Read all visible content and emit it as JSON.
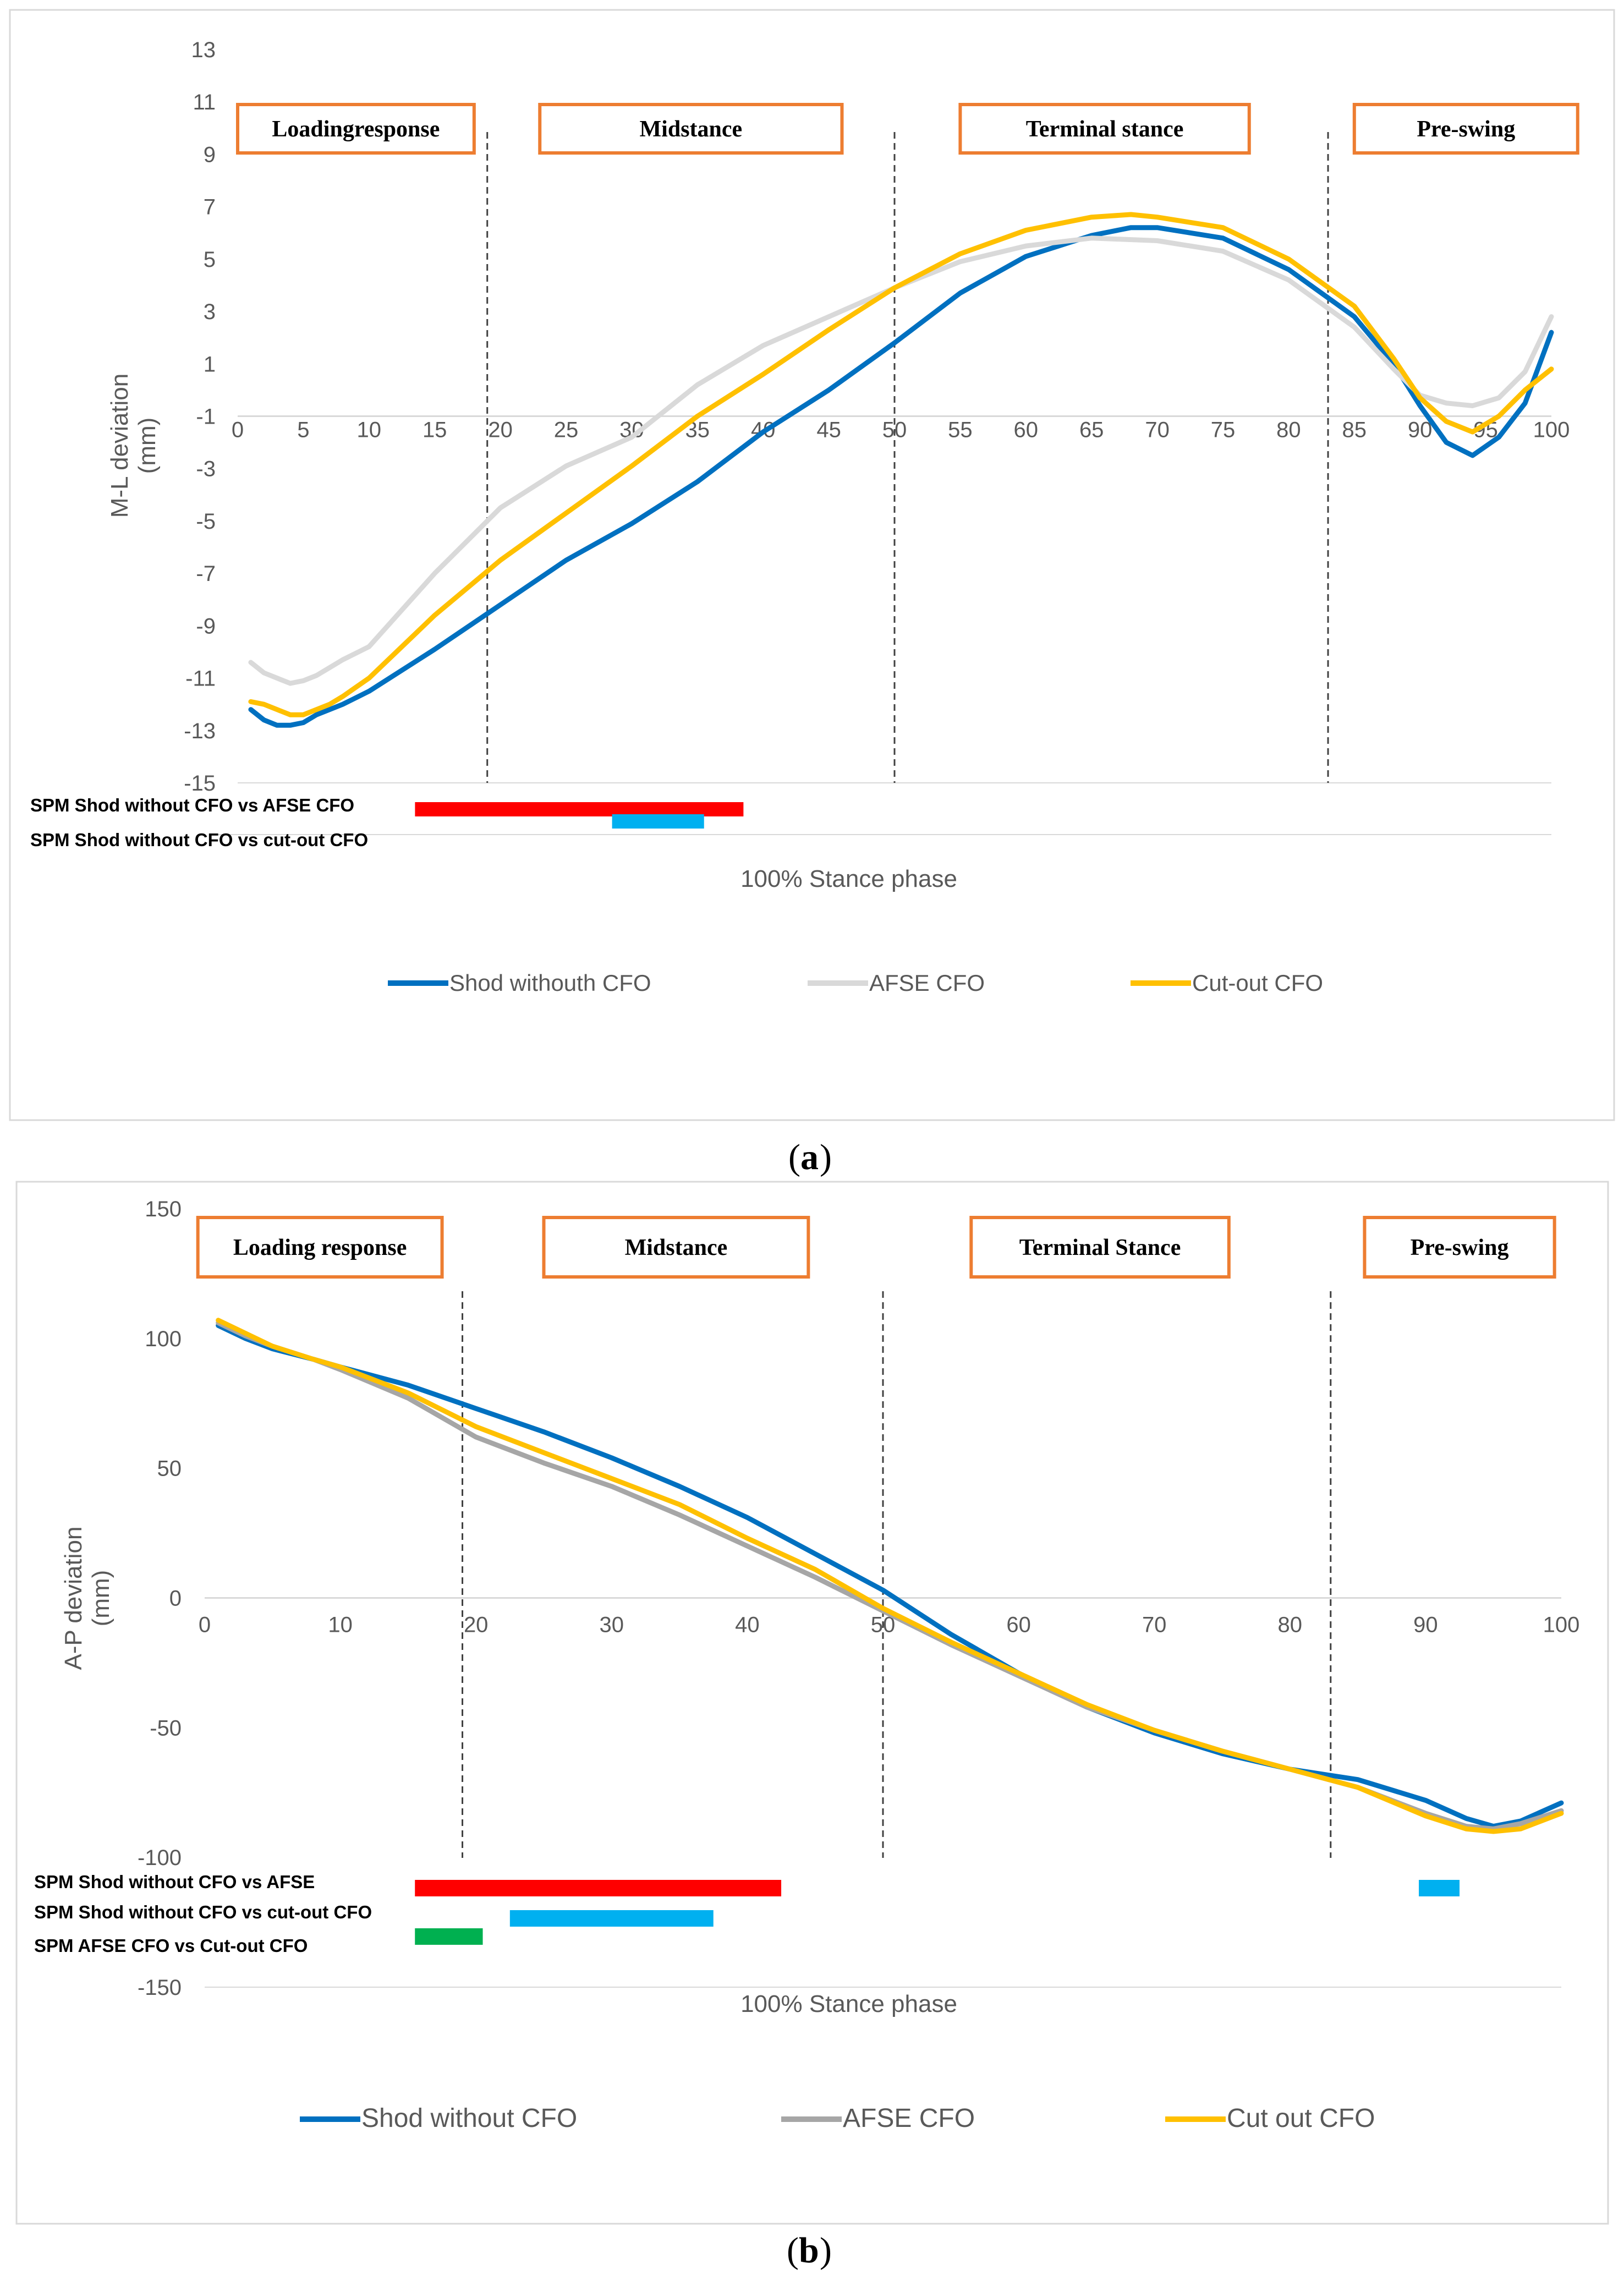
{
  "chart_data": [
    {
      "id": "a",
      "type": "line",
      "panel_label": "a",
      "xlabel": "100% Stance phase",
      "ylabel": [
        "M-L deviation",
        "(mm)"
      ],
      "xlim": [
        0,
        100
      ],
      "ylim": [
        -15,
        13
      ],
      "xticks": [
        0,
        5,
        10,
        15,
        20,
        25,
        30,
        35,
        40,
        45,
        50,
        55,
        60,
        65,
        70,
        75,
        80,
        85,
        90,
        95,
        100
      ],
      "yticks": [
        13,
        11,
        9,
        7,
        5,
        3,
        1,
        -1,
        -3,
        -5,
        -7,
        -9,
        -11,
        -13,
        -15
      ],
      "x_axis_at": -1,
      "phase_lines": [
        19,
        50,
        83
      ],
      "phases": [
        {
          "label": "Loadingresponse",
          "start": 0,
          "end": 18
        },
        {
          "label": "Midstance",
          "start": 23,
          "end": 46
        },
        {
          "label": "Terminal stance",
          "start": 55,
          "end": 77
        },
        {
          "label": "Pre-swing",
          "start": 85,
          "end": 102
        }
      ],
      "spm": [
        {
          "label": "SPM Shod without CFO vs AFSE CFO",
          "bars": [
            {
              "start": 13.5,
              "end": 38.5,
              "color": "#ff0000"
            }
          ]
        },
        {
          "label": "SPM Shod without CFO vs cut-out CFO",
          "bars": [
            {
              "start": 28.5,
              "end": 35.5,
              "color": "#00b0f0"
            }
          ]
        }
      ],
      "series": [
        {
          "name": "Shod withouth CFO",
          "color": "#0070c0",
          "x": [
            1,
            2,
            3,
            4,
            5,
            6,
            7,
            8,
            10,
            15,
            20,
            25,
            30,
            35,
            40,
            45,
            50,
            55,
            60,
            65,
            68,
            70,
            75,
            80,
            85,
            88,
            90,
            92,
            94,
            96,
            98,
            100
          ],
          "values": [
            -12.2,
            -12.6,
            -12.8,
            -12.8,
            -12.7,
            -12.4,
            -12.2,
            -12.0,
            -11.5,
            -9.9,
            -8.2,
            -6.5,
            -5.1,
            -3.5,
            -1.6,
            0.0,
            1.8,
            3.7,
            5.1,
            5.9,
            6.2,
            6.2,
            5.8,
            4.6,
            2.8,
            1.0,
            -0.6,
            -2.0,
            -2.5,
            -1.8,
            -0.5,
            2.2
          ]
        },
        {
          "name": "AFSE CFO",
          "color": "#d9d9d9",
          "x": [
            1,
            2,
            3,
            4,
            5,
            6,
            7,
            8,
            10,
            15,
            20,
            25,
            30,
            35,
            40,
            45,
            50,
            55,
            60,
            65,
            70,
            75,
            80,
            85,
            88,
            90,
            92,
            94,
            96,
            98,
            100
          ],
          "values": [
            -10.4,
            -10.8,
            -11.0,
            -11.2,
            -11.1,
            -10.9,
            -10.6,
            -10.3,
            -9.8,
            -7.0,
            -4.5,
            -2.9,
            -1.8,
            0.2,
            1.7,
            2.8,
            3.9,
            4.9,
            5.5,
            5.8,
            5.7,
            5.3,
            4.2,
            2.4,
            0.8,
            -0.2,
            -0.5,
            -0.6,
            -0.3,
            0.7,
            2.8
          ]
        },
        {
          "name": "Cut-out CFO",
          "color": "#ffc000",
          "x": [
            1,
            2,
            3,
            4,
            5,
            6,
            7,
            8,
            10,
            15,
            20,
            25,
            30,
            35,
            40,
            45,
            50,
            55,
            60,
            65,
            68,
            70,
            75,
            80,
            85,
            88,
            90,
            92,
            94,
            96,
            98,
            100
          ],
          "values": [
            -11.9,
            -12.0,
            -12.2,
            -12.4,
            -12.4,
            -12.2,
            -12.0,
            -11.7,
            -11.0,
            -8.6,
            -6.5,
            -4.7,
            -2.9,
            -1.0,
            0.6,
            2.3,
            3.9,
            5.2,
            6.1,
            6.6,
            6.7,
            6.6,
            6.2,
            5.0,
            3.2,
            1.2,
            -0.3,
            -1.2,
            -1.6,
            -1.0,
            0.0,
            0.8
          ]
        }
      ],
      "legend": [
        "Shod withouth CFO",
        "AFSE CFO",
        "Cut-out CFO"
      ]
    },
    {
      "id": "b",
      "type": "line",
      "panel_label": "b",
      "xlabel": "100% Stance phase",
      "ylabel": [
        "A-P deviation",
        "(mm)"
      ],
      "xlim": [
        0,
        100
      ],
      "ylim": [
        -150,
        150
      ],
      "xticks": [
        0,
        10,
        20,
        30,
        40,
        50,
        60,
        70,
        80,
        90,
        100
      ],
      "yticks": [
        150,
        100,
        50,
        0,
        -50,
        -100,
        -150
      ],
      "x_axis_at": 0,
      "phase_lines": [
        19,
        50,
        83
      ],
      "phases": [
        {
          "label": "Loading response",
          "start": -0.5,
          "end": 17.5
        },
        {
          "label": "Midstance",
          "start": 25,
          "end": 44.5
        },
        {
          "label": "Terminal Stance",
          "start": 56.5,
          "end": 75.5
        },
        {
          "label": "Pre-swing",
          "start": 85.5,
          "end": 99.5
        }
      ],
      "spm": [
        {
          "label": "SPM Shod without CFO vs AFSE",
          "bars": [
            {
              "start": 15.5,
              "end": 42.5,
              "color": "#ff0000"
            },
            {
              "start": 89.5,
              "end": 92.5,
              "color": "#00b0f0"
            }
          ]
        },
        {
          "label": "SPM Shod without CFO vs cut-out CFO",
          "bars": [
            {
              "start": 22.5,
              "end": 37.5,
              "color": "#00b0f0"
            }
          ]
        },
        {
          "label": "SPM AFSE CFO vs Cut-out CFO",
          "bars": [
            {
              "start": 15.5,
              "end": 20.5,
              "color": "#00b050"
            }
          ]
        }
      ],
      "series": [
        {
          "name": "Shod without CFO",
          "color": "#0070c0",
          "x": [
            1,
            3,
            5,
            8,
            10,
            15,
            20,
            25,
            30,
            35,
            40,
            45,
            50,
            55,
            60,
            65,
            70,
            75,
            80,
            85,
            90,
            93,
            95,
            97,
            100
          ],
          "values": [
            105,
            100,
            96,
            92,
            89,
            82,
            73,
            64,
            54,
            43,
            31,
            17,
            3,
            -14,
            -29,
            -42,
            -52,
            -60,
            -66,
            -70,
            -78,
            -85,
            -88,
            -86,
            -79
          ]
        },
        {
          "name": "AFSE CFO",
          "color": "#a6a6a6",
          "x": [
            1,
            3,
            5,
            8,
            10,
            15,
            20,
            25,
            30,
            35,
            40,
            45,
            50,
            55,
            60,
            65,
            70,
            75,
            80,
            85,
            90,
            93,
            95,
            97,
            100
          ],
          "values": [
            106,
            101,
            97,
            92,
            88,
            77,
            62,
            52,
            43,
            32,
            20,
            8,
            -5,
            -18,
            -30,
            -42,
            -51,
            -59,
            -66,
            -73,
            -83,
            -88,
            -89,
            -87,
            -82
          ]
        },
        {
          "name": "Cut out CFO",
          "color": "#ffc000",
          "x": [
            1,
            3,
            5,
            8,
            10,
            15,
            20,
            25,
            30,
            35,
            40,
            45,
            50,
            55,
            60,
            65,
            70,
            75,
            80,
            85,
            90,
            93,
            95,
            97,
            100
          ],
          "values": [
            107,
            102,
            97,
            92,
            89,
            79,
            66,
            56,
            46,
            36,
            23,
            11,
            -4,
            -17,
            -29,
            -41,
            -51,
            -59,
            -66,
            -73,
            -84,
            -89,
            -90,
            -89,
            -83
          ]
        }
      ],
      "legend": [
        "Shod without CFO",
        "AFSE CFO",
        "Cut out CFO"
      ]
    }
  ]
}
